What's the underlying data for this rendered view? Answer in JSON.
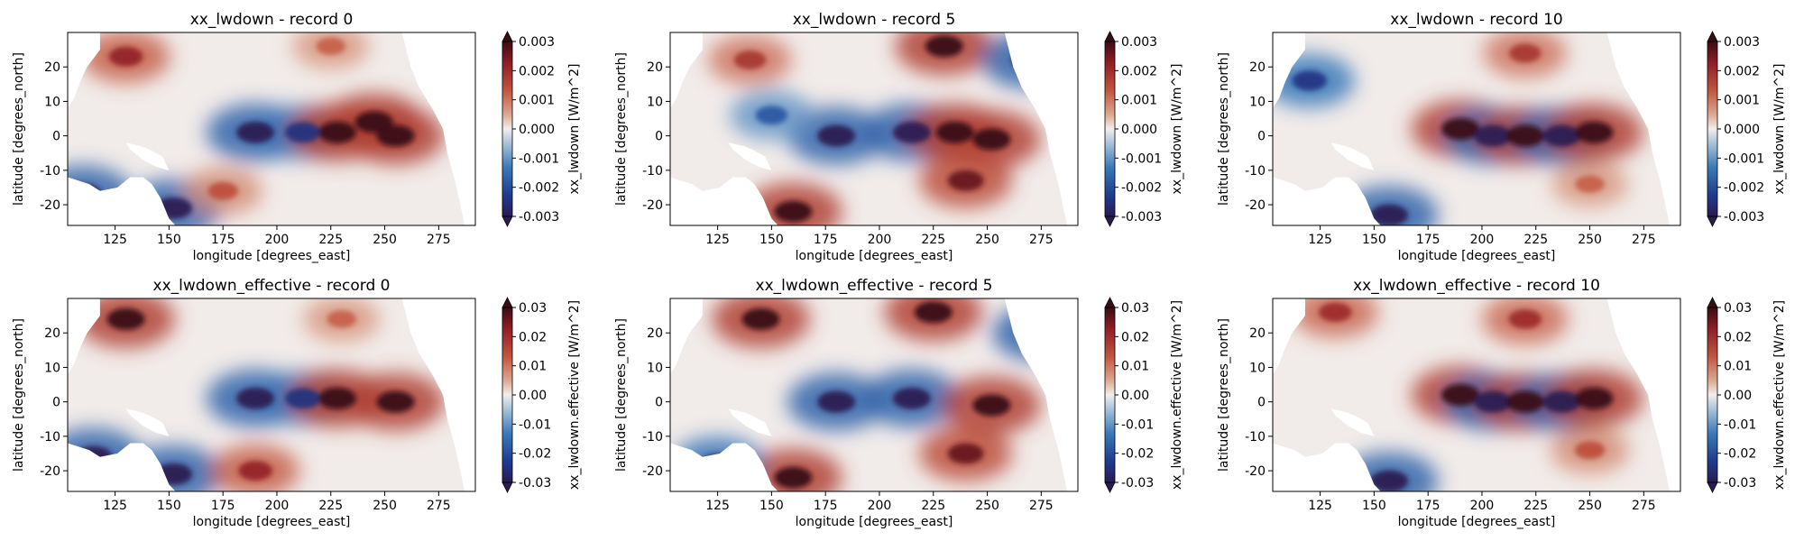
{
  "chart_data": [
    {
      "type": "heatmap",
      "title": "xx_lwdown - record 0",
      "xlabel": "longitude [degrees_east]",
      "ylabel": "latitude [degrees_north]",
      "colorbar_label": "xx_lwdown [W/m^2]",
      "xlim": [
        103,
        292
      ],
      "ylim": [
        -26,
        30
      ],
      "xticks": [
        125,
        150,
        175,
        200,
        225,
        250,
        275
      ],
      "yticks": [
        -20,
        -10,
        0,
        10,
        20
      ],
      "clim": [
        -0.003,
        0.003
      ],
      "cticks": [
        "-0.003",
        "-0.002",
        "-0.001",
        "0.000",
        "0.001",
        "0.002",
        "0.003"
      ],
      "colormap": "balance (diverging blue-white-red)",
      "features": [
        {
          "lon": 130,
          "lat": 23,
          "value": 0.0022
        },
        {
          "lon": 190,
          "lat": 1,
          "value": -0.003
        },
        {
          "lon": 212,
          "lat": 1,
          "value": -0.0025
        },
        {
          "lon": 228,
          "lat": 1,
          "value": 0.003
        },
        {
          "lon": 245,
          "lat": 4,
          "value": 0.003
        },
        {
          "lon": 255,
          "lat": 0,
          "value": 0.003
        },
        {
          "lon": 110,
          "lat": -17,
          "value": -0.003
        },
        {
          "lon": 152,
          "lat": -21,
          "value": -0.003
        },
        {
          "lon": 175,
          "lat": -16,
          "value": 0.0014
        },
        {
          "lon": 225,
          "lat": 26,
          "value": 0.0012
        }
      ]
    },
    {
      "type": "heatmap",
      "title": "xx_lwdown - record 5",
      "xlabel": "longitude [degrees_east]",
      "ylabel": "latitude [degrees_north]",
      "colorbar_label": "xx_lwdown [W/m^2]",
      "xlim": [
        103,
        292
      ],
      "ylim": [
        -26,
        30
      ],
      "xticks": [
        125,
        150,
        175,
        200,
        225,
        250,
        275
      ],
      "yticks": [
        -20,
        -10,
        0,
        10,
        20
      ],
      "clim": [
        -0.003,
        0.003
      ],
      "cticks": [
        "-0.003",
        "-0.002",
        "-0.001",
        "0.000",
        "0.001",
        "0.002",
        "0.003"
      ],
      "colormap": "balance (diverging blue-white-red)",
      "features": [
        {
          "lon": 140,
          "lat": 22,
          "value": 0.0018
        },
        {
          "lon": 230,
          "lat": 26,
          "value": 0.003
        },
        {
          "lon": 180,
          "lat": 0,
          "value": -0.003
        },
        {
          "lon": 215,
          "lat": 1,
          "value": -0.003
        },
        {
          "lon": 235,
          "lat": 1,
          "value": 0.003
        },
        {
          "lon": 252,
          "lat": -1,
          "value": 0.003
        },
        {
          "lon": 160,
          "lat": -22,
          "value": 0.003
        },
        {
          "lon": 240,
          "lat": -13,
          "value": 0.0026
        },
        {
          "lon": 270,
          "lat": 22,
          "value": -0.003
        },
        {
          "lon": 150,
          "lat": 6,
          "value": -0.0018
        }
      ]
    },
    {
      "type": "heatmap",
      "title": "xx_lwdown - record 10",
      "xlabel": "longitude [degrees_east]",
      "ylabel": "latitude [degrees_north]",
      "colorbar_label": "xx_lwdown [W/m^2]",
      "xlim": [
        103,
        292
      ],
      "ylim": [
        -26,
        30
      ],
      "xticks": [
        125,
        150,
        175,
        200,
        225,
        250,
        275
      ],
      "yticks": [
        -20,
        -10,
        0,
        10,
        20
      ],
      "clim": [
        -0.003,
        0.003
      ],
      "cticks": [
        "-0.003",
        "-0.002",
        "-0.001",
        "0.000",
        "0.001",
        "0.002",
        "0.003"
      ],
      "colormap": "balance (diverging blue-white-red)",
      "features": [
        {
          "lon": 220,
          "lat": 24,
          "value": 0.0018
        },
        {
          "lon": 190,
          "lat": 2,
          "value": 0.003
        },
        {
          "lon": 205,
          "lat": 0,
          "value": -0.003
        },
        {
          "lon": 220,
          "lat": 0,
          "value": 0.003
        },
        {
          "lon": 237,
          "lat": 0,
          "value": -0.003
        },
        {
          "lon": 252,
          "lat": 1,
          "value": 0.003
        },
        {
          "lon": 157,
          "lat": -23,
          "value": -0.003
        },
        {
          "lon": 120,
          "lat": 16,
          "value": -0.0024
        },
        {
          "lon": 250,
          "lat": -14,
          "value": 0.0012
        }
      ]
    },
    {
      "type": "heatmap",
      "title": "xx_lwdown_effective - record 0",
      "xlabel": "longitude [degrees_east]",
      "ylabel": "latitude [degrees_north]",
      "colorbar_label": "xx_lwdown.effective [W/m^2]",
      "xlim": [
        103,
        292
      ],
      "ylim": [
        -26,
        30
      ],
      "xticks": [
        125,
        150,
        175,
        200,
        225,
        250,
        275
      ],
      "yticks": [
        -20,
        -10,
        0,
        10,
        20
      ],
      "clim": [
        -0.03,
        0.03
      ],
      "cticks": [
        "-0.03",
        "-0.02",
        "-0.01",
        "0.00",
        "0.01",
        "0.02",
        "0.03"
      ],
      "colormap": "balance (diverging blue-white-red)",
      "features": [
        {
          "lon": 130,
          "lat": 24,
          "value": 0.03
        },
        {
          "lon": 190,
          "lat": 1,
          "value": -0.03
        },
        {
          "lon": 212,
          "lat": 1,
          "value": -0.025
        },
        {
          "lon": 228,
          "lat": 1,
          "value": 0.03
        },
        {
          "lon": 255,
          "lat": 0,
          "value": 0.03
        },
        {
          "lon": 115,
          "lat": -16,
          "value": -0.03
        },
        {
          "lon": 152,
          "lat": -21,
          "value": -0.03
        },
        {
          "lon": 190,
          "lat": -20,
          "value": 0.022
        },
        {
          "lon": 230,
          "lat": 24,
          "value": 0.012
        }
      ]
    },
    {
      "type": "heatmap",
      "title": "xx_lwdown_effective - record 5",
      "xlabel": "longitude [degrees_east]",
      "ylabel": "latitude [degrees_north]",
      "colorbar_label": "xx_lwdown.effective [W/m^2]",
      "xlim": [
        103,
        292
      ],
      "ylim": [
        -26,
        30
      ],
      "xticks": [
        125,
        150,
        175,
        200,
        225,
        250,
        275
      ],
      "yticks": [
        -20,
        -10,
        0,
        10,
        20
      ],
      "clim": [
        -0.03,
        0.03
      ],
      "cticks": [
        "-0.03",
        "-0.02",
        "-0.01",
        "0.00",
        "0.01",
        "0.02",
        "0.03"
      ],
      "colormap": "balance (diverging blue-white-red)",
      "features": [
        {
          "lon": 145,
          "lat": 24,
          "value": 0.03
        },
        {
          "lon": 225,
          "lat": 26,
          "value": 0.03
        },
        {
          "lon": 180,
          "lat": 0,
          "value": -0.03
        },
        {
          "lon": 215,
          "lat": 1,
          "value": -0.03
        },
        {
          "lon": 252,
          "lat": -1,
          "value": 0.03
        },
        {
          "lon": 160,
          "lat": -22,
          "value": 0.03
        },
        {
          "lon": 240,
          "lat": -15,
          "value": 0.026
        },
        {
          "lon": 275,
          "lat": 20,
          "value": -0.03
        },
        {
          "lon": 125,
          "lat": -18,
          "value": -0.025
        }
      ]
    },
    {
      "type": "heatmap",
      "title": "xx_lwdown_effective - record 10",
      "xlabel": "longitude [degrees_east]",
      "ylabel": "latitude [degrees_north]",
      "colorbar_label": "xx_lwdown.effective [W/m^2]",
      "xlim": [
        103,
        292
      ],
      "ylim": [
        -26,
        30
      ],
      "xticks": [
        125,
        150,
        175,
        200,
        225,
        250,
        275
      ],
      "yticks": [
        -20,
        -10,
        0,
        10,
        20
      ],
      "clim": [
        -0.03,
        0.03
      ],
      "cticks": [
        "-0.03",
        "-0.02",
        "-0.01",
        "0.00",
        "0.01",
        "0.02",
        "0.03"
      ],
      "colormap": "balance (diverging blue-white-red)",
      "features": [
        {
          "lon": 220,
          "lat": 24,
          "value": 0.02
        },
        {
          "lon": 132,
          "lat": 26,
          "value": 0.02
        },
        {
          "lon": 190,
          "lat": 2,
          "value": 0.03
        },
        {
          "lon": 205,
          "lat": 0,
          "value": -0.03
        },
        {
          "lon": 220,
          "lat": 0,
          "value": 0.03
        },
        {
          "lon": 237,
          "lat": 0,
          "value": -0.03
        },
        {
          "lon": 252,
          "lat": 1,
          "value": 0.03
        },
        {
          "lon": 157,
          "lat": -23,
          "value": -0.03
        },
        {
          "lon": 250,
          "lat": -14,
          "value": 0.014
        }
      ]
    }
  ]
}
